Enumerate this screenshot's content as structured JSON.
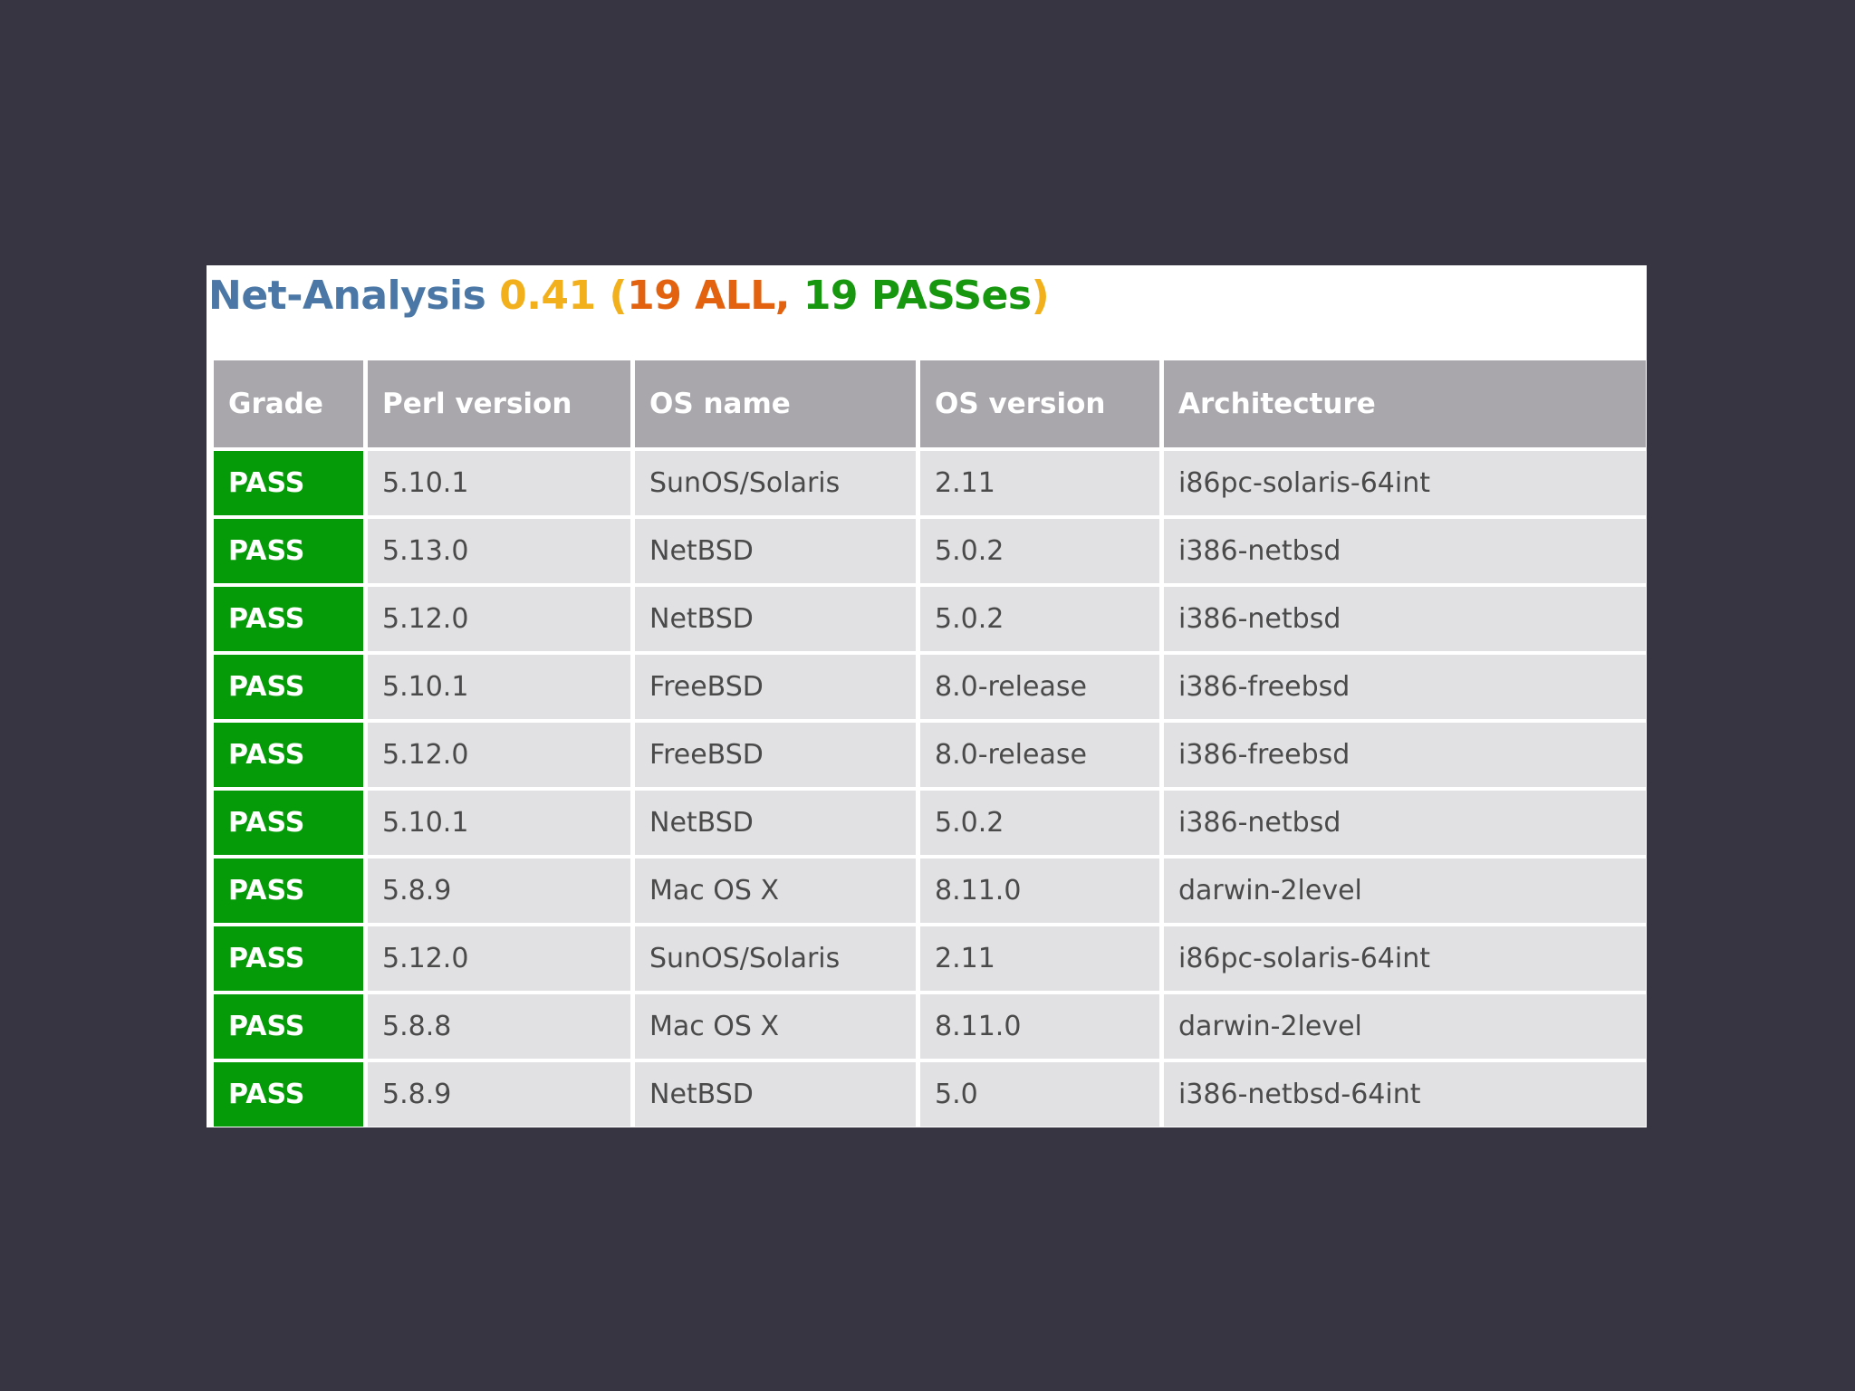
{
  "title": {
    "name": "Net-Analysis",
    "version": "0.41",
    "paren_open": "(",
    "all_count": "19 ALL,",
    "pass_count": "19 PASSes",
    "paren_close": ")"
  },
  "table": {
    "headers": [
      "Grade",
      "Perl version",
      "OS name",
      "OS version",
      "Architecture"
    ],
    "rows": [
      {
        "grade": "PASS",
        "perl": "5.10.1",
        "os_name": "SunOS/Solaris",
        "os_version": "2.11",
        "arch": "i86pc-solaris-64int"
      },
      {
        "grade": "PASS",
        "perl": "5.13.0",
        "os_name": "NetBSD",
        "os_version": "5.0.2",
        "arch": "i386-netbsd"
      },
      {
        "grade": "PASS",
        "perl": "5.12.0",
        "os_name": "NetBSD",
        "os_version": "5.0.2",
        "arch": "i386-netbsd"
      },
      {
        "grade": "PASS",
        "perl": "5.10.1",
        "os_name": "FreeBSD",
        "os_version": "8.0-release",
        "arch": "i386-freebsd"
      },
      {
        "grade": "PASS",
        "perl": "5.12.0",
        "os_name": "FreeBSD",
        "os_version": "8.0-release",
        "arch": "i386-freebsd"
      },
      {
        "grade": "PASS",
        "perl": "5.10.1",
        "os_name": "NetBSD",
        "os_version": "5.0.2",
        "arch": "i386-netbsd"
      },
      {
        "grade": "PASS",
        "perl": "5.8.9",
        "os_name": "Mac OS X",
        "os_version": "8.11.0",
        "arch": "darwin-2level"
      },
      {
        "grade": "PASS",
        "perl": "5.12.0",
        "os_name": "SunOS/Solaris",
        "os_version": "2.11",
        "arch": "i86pc-solaris-64int"
      },
      {
        "grade": "PASS",
        "perl": "5.8.8",
        "os_name": "Mac OS X",
        "os_version": "8.11.0",
        "arch": "darwin-2level"
      },
      {
        "grade": "PASS",
        "perl": "5.8.9",
        "os_name": "NetBSD",
        "os_version": "5.0",
        "arch": "i386-netbsd-64int"
      }
    ]
  },
  "colors": {
    "background": "#373542",
    "title_name": "#4a77a5",
    "title_version": "#f2b11c",
    "title_all": "#e2620f",
    "title_pass": "#179610",
    "header_bg": "#a9a7ab",
    "cell_bg": "#e1e0e3",
    "pass_bg": "#059a07"
  }
}
